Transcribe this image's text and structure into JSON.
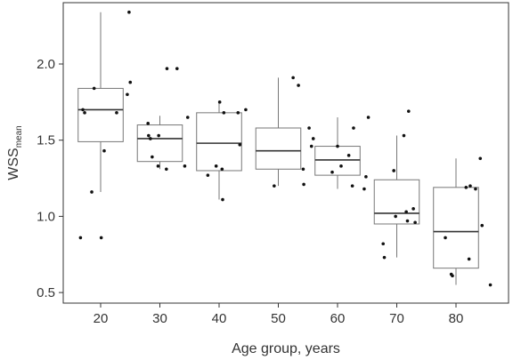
{
  "chart_data": {
    "type": "boxplot",
    "xlabel": "Age group, years",
    "ylabel_main": "WSS",
    "ylabel_sub": "mean",
    "ylim": [
      0.45,
      2.43
    ],
    "yticks": [
      "0.5",
      "1.0",
      "1.5",
      "2.0"
    ],
    "categories": [
      "20",
      "30",
      "40",
      "50",
      "60",
      "70",
      "80"
    ],
    "boxes": [
      {
        "category": "20",
        "min": 1.16,
        "q1": 1.49,
        "median": 1.7,
        "q3": 1.84,
        "max": 2.34
      },
      {
        "category": "30",
        "min": 1.31,
        "q1": 1.36,
        "median": 1.51,
        "q3": 1.6,
        "max": 1.66
      },
      {
        "category": "40",
        "min": 1.11,
        "q1": 1.3,
        "median": 1.48,
        "q3": 1.68,
        "max": 1.75
      },
      {
        "category": "50",
        "min": 1.2,
        "q1": 1.31,
        "median": 1.43,
        "q3": 1.58,
        "max": 1.91
      },
      {
        "category": "60",
        "min": 1.18,
        "q1": 1.27,
        "median": 1.37,
        "q3": 1.46,
        "max": 1.65
      },
      {
        "category": "70",
        "min": 0.73,
        "q1": 0.95,
        "median": 1.02,
        "q3": 1.24,
        "max": 1.53
      },
      {
        "category": "80",
        "min": 0.55,
        "q1": 0.66,
        "median": 0.9,
        "q3": 1.19,
        "max": 1.38
      }
    ],
    "points": [
      {
        "category": "20",
        "x_offset": -0.34,
        "y": 0.86
      },
      {
        "category": "20",
        "x_offset": 0.01,
        "y": 0.86
      },
      {
        "category": "20",
        "x_offset": -0.15,
        "y": 1.16
      },
      {
        "category": "20",
        "x_offset": 0.06,
        "y": 1.43
      },
      {
        "category": "20",
        "x_offset": -0.27,
        "y": 1.68
      },
      {
        "category": "20",
        "x_offset": -0.3,
        "y": 1.7
      },
      {
        "category": "20",
        "x_offset": 0.27,
        "y": 1.68
      },
      {
        "category": "20",
        "x_offset": -0.11,
        "y": 1.84
      },
      {
        "category": "20",
        "x_offset": 0.45,
        "y": 1.8
      },
      {
        "category": "20",
        "x_offset": 0.5,
        "y": 1.88
      },
      {
        "category": "20",
        "x_offset": 0.48,
        "y": 2.34
      },
      {
        "category": "30",
        "x_offset": 0.12,
        "y": 1.97
      },
      {
        "category": "30",
        "x_offset": 0.29,
        "y": 1.97
      },
      {
        "category": "30",
        "x_offset": -0.2,
        "y": 1.61
      },
      {
        "category": "30",
        "x_offset": -0.19,
        "y": 1.53
      },
      {
        "category": "30",
        "x_offset": -0.16,
        "y": 1.51
      },
      {
        "category": "30",
        "x_offset": -0.02,
        "y": 1.53
      },
      {
        "category": "30",
        "x_offset": 0.47,
        "y": 1.65
      },
      {
        "category": "30",
        "x_offset": -0.13,
        "y": 1.39
      },
      {
        "category": "30",
        "x_offset": -0.03,
        "y": 1.33
      },
      {
        "category": "30",
        "x_offset": 0.11,
        "y": 1.31
      },
      {
        "category": "30",
        "x_offset": 0.42,
        "y": 1.33
      },
      {
        "category": "40",
        "x_offset": 0.01,
        "y": 1.75
      },
      {
        "category": "40",
        "x_offset": 0.08,
        "y": 1.68
      },
      {
        "category": "40",
        "x_offset": 0.32,
        "y": 1.68
      },
      {
        "category": "40",
        "x_offset": 0.45,
        "y": 1.7
      },
      {
        "category": "40",
        "x_offset": 0.35,
        "y": 1.47
      },
      {
        "category": "40",
        "x_offset": -0.05,
        "y": 1.33
      },
      {
        "category": "40",
        "x_offset": 0.05,
        "y": 1.31
      },
      {
        "category": "40",
        "x_offset": -0.19,
        "y": 1.27
      },
      {
        "category": "40",
        "x_offset": 0.06,
        "y": 1.11
      },
      {
        "category": "50",
        "x_offset": 0.25,
        "y": 1.91
      },
      {
        "category": "50",
        "x_offset": 0.34,
        "y": 1.86
      },
      {
        "category": "50",
        "x_offset": 0.52,
        "y": 1.58
      },
      {
        "category": "50",
        "x_offset": 0.59,
        "y": 1.51
      },
      {
        "category": "50",
        "x_offset": 0.56,
        "y": 1.46
      },
      {
        "category": "50",
        "x_offset": 0.42,
        "y": 1.31
      },
      {
        "category": "50",
        "x_offset": -0.07,
        "y": 1.2
      },
      {
        "category": "50",
        "x_offset": 0.43,
        "y": 1.21
      },
      {
        "category": "60",
        "x_offset": 0.0,
        "y": 1.46
      },
      {
        "category": "60",
        "x_offset": 0.27,
        "y": 1.58
      },
      {
        "category": "60",
        "x_offset": 0.19,
        "y": 1.4
      },
      {
        "category": "60",
        "x_offset": 0.06,
        "y": 1.33
      },
      {
        "category": "60",
        "x_offset": 0.52,
        "y": 1.65
      },
      {
        "category": "60",
        "x_offset": -0.09,
        "y": 1.29
      },
      {
        "category": "60",
        "x_offset": 0.48,
        "y": 1.26
      },
      {
        "category": "60",
        "x_offset": 0.25,
        "y": 1.2
      },
      {
        "category": "60",
        "x_offset": 0.45,
        "y": 1.18
      },
      {
        "category": "70",
        "x_offset": 0.12,
        "y": 1.53
      },
      {
        "category": "70",
        "x_offset": 0.2,
        "y": 1.69
      },
      {
        "category": "70",
        "x_offset": -0.05,
        "y": 1.3
      },
      {
        "category": "70",
        "x_offset": 0.16,
        "y": 1.03
      },
      {
        "category": "70",
        "x_offset": 0.28,
        "y": 1.05
      },
      {
        "category": "70",
        "x_offset": -0.02,
        "y": 1.0
      },
      {
        "category": "70",
        "x_offset": 0.18,
        "y": 0.97
      },
      {
        "category": "70",
        "x_offset": 0.31,
        "y": 0.96
      },
      {
        "category": "70",
        "x_offset": -0.23,
        "y": 0.82
      },
      {
        "category": "70",
        "x_offset": -0.21,
        "y": 0.73
      },
      {
        "category": "80",
        "x_offset": 0.41,
        "y": 1.38
      },
      {
        "category": "80",
        "x_offset": 0.17,
        "y": 1.19
      },
      {
        "category": "80",
        "x_offset": 0.24,
        "y": 1.2
      },
      {
        "category": "80",
        "x_offset": 0.33,
        "y": 1.18
      },
      {
        "category": "80",
        "x_offset": -0.18,
        "y": 0.86
      },
      {
        "category": "80",
        "x_offset": 0.44,
        "y": 0.94
      },
      {
        "category": "80",
        "x_offset": 0.22,
        "y": 0.72
      },
      {
        "category": "80",
        "x_offset": -0.08,
        "y": 0.62
      },
      {
        "category": "80",
        "x_offset": -0.06,
        "y": 0.61
      },
      {
        "category": "80",
        "x_offset": 0.58,
        "y": 0.55
      }
    ],
    "grid": false,
    "colors": {
      "box_stroke": "#777777",
      "median": "#333333",
      "point": "#111111",
      "frame": "#333333"
    }
  }
}
